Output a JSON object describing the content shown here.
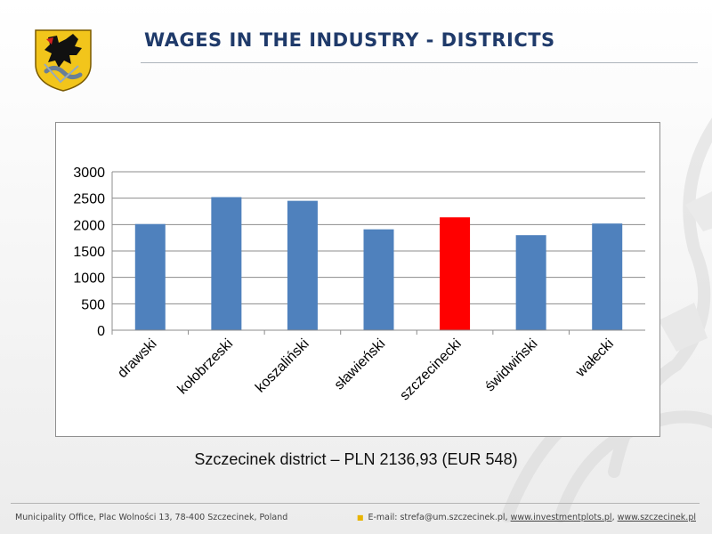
{
  "slide": {
    "title": "WAGES IN THE INDUSTRY - DISTRICTS",
    "caption": "Szczecinek district – PLN 2136,93 (EUR 548)"
  },
  "footer": {
    "left": "Municipality Office, Plac Wolności 13, 78-400 Szczecinek, Poland",
    "email_label": "E-mail: strefa@um.szczecinek.pl,",
    "link1": "www.investmentplots.pl",
    "separator": ",",
    "link2": "www.szczecinek.pl"
  },
  "colors": {
    "title": "#1f3a6a",
    "bar": "#4f81bd",
    "highlight": "#ff0000",
    "crest_yellow": "#f2c51b",
    "crest_red": "#d11f1f"
  },
  "chart_data": {
    "type": "bar",
    "categories": [
      "drawski",
      "kołobrzeski",
      "koszaliński",
      "sławieński",
      "szczecinecki",
      "świdwiński",
      "wałecki"
    ],
    "values": [
      2010,
      2520,
      2450,
      1910,
      2137,
      1800,
      2020
    ],
    "highlight_category": "szczecinecki",
    "ylim": [
      0,
      3000
    ],
    "yticks": [
      "0",
      "500",
      "1000",
      "1500",
      "2000",
      "2500",
      "3000"
    ],
    "grid": true,
    "legend": "none",
    "title": "",
    "xlabel": "",
    "ylabel": ""
  }
}
